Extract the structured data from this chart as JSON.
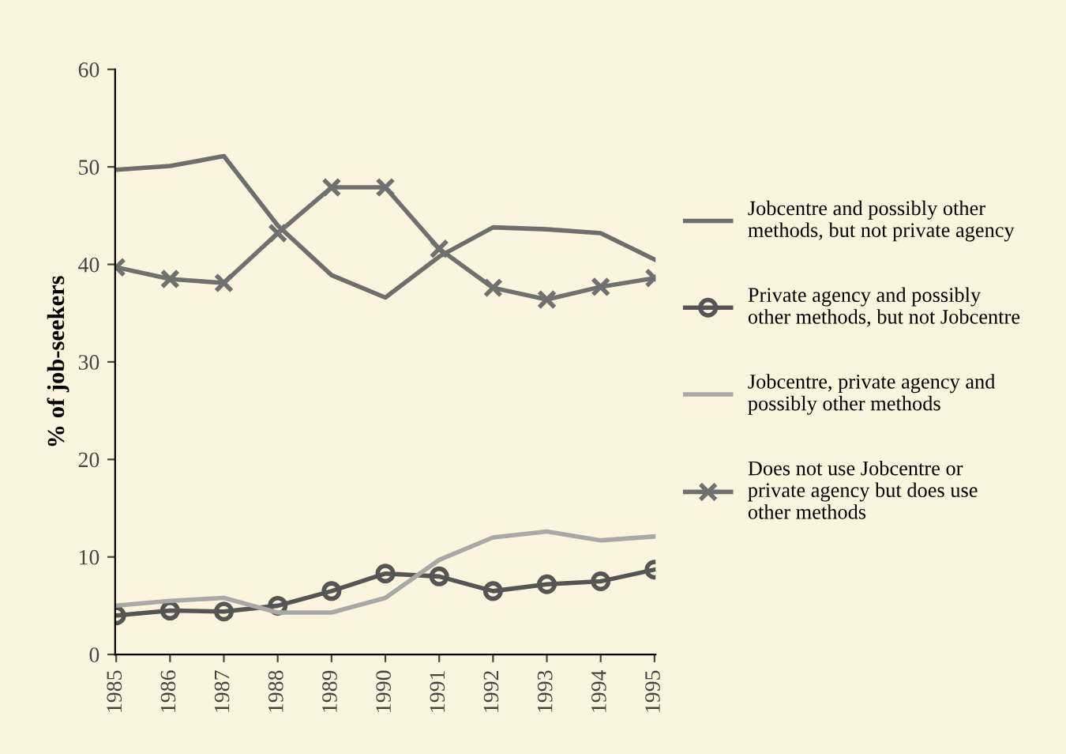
{
  "chart_data": {
    "type": "line",
    "ylabel": "% of job-seekers",
    "categories": [
      "1985",
      "1986",
      "1987",
      "1988",
      "1989",
      "1990",
      "1991",
      "1992",
      "1993",
      "1994",
      "1995"
    ],
    "ylim": [
      0,
      60
    ],
    "yticks": [
      0,
      10,
      20,
      30,
      40,
      50,
      60
    ],
    "grid": false,
    "legend": "right",
    "line_style": "solid",
    "series": [
      {
        "name": "Jobcentre and possibly other methods, but not private agency",
        "color": "#6e6e6e",
        "marker": "none",
        "values": [
          49.7,
          50.1,
          51.1,
          44,
          38.9,
          36.6,
          40.8,
          43.8,
          43.6,
          43.2,
          40.5
        ]
      },
      {
        "name": "Private agency and possibly other methods, but not Jobcentre",
        "color": "#555555",
        "marker": "circle",
        "values": [
          4.0,
          4.5,
          4.4,
          5.0,
          6.5,
          8.3,
          8.0,
          6.5,
          7.2,
          7.5,
          8.7
        ]
      },
      {
        "name": "Jobcentre, private agency and possibly other methods",
        "color": "#a8a8a8",
        "marker": "none",
        "values": [
          5.0,
          5.5,
          5.8,
          4.3,
          4.3,
          5.8,
          9.7,
          12.0,
          12.6,
          11.7,
          12.1
        ]
      },
      {
        "name": "Does not use Jobcentre or private agency but does use other methods",
        "color": "#707070",
        "marker": "cross",
        "values": [
          39.7,
          38.5,
          38.1,
          43.2,
          47.9,
          47.9,
          41.6,
          37.6,
          36.4,
          37.7,
          38.6
        ]
      }
    ]
  }
}
